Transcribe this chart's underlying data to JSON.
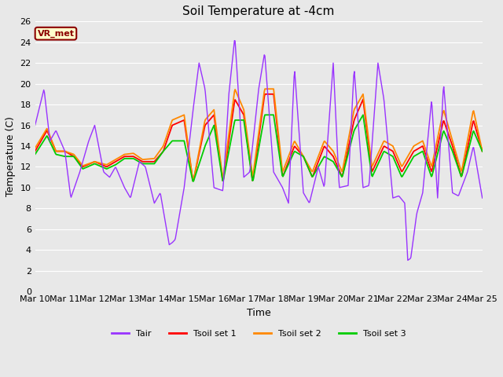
{
  "title": "Soil Temperature at -4cm",
  "xlabel": "Time",
  "ylabel": "Temperature (C)",
  "ylim": [
    0,
    26
  ],
  "yticks": [
    0,
    2,
    4,
    6,
    8,
    10,
    12,
    14,
    16,
    18,
    20,
    22,
    24,
    26
  ],
  "x_tick_labels": [
    "Mar 10",
    "Mar 11",
    "Mar 12",
    "Mar 13",
    "Mar 14",
    "Mar 15",
    "Mar 16",
    "Mar 17",
    "Mar 18",
    "Mar 19",
    "Mar 20",
    "Mar 21",
    "Mar 22",
    "Mar 23",
    "Mar 24",
    "Mar 25"
  ],
  "annotation_text": "VR_met",
  "annotation_color": "#8B0000",
  "annotation_bg": "#FFFFCC",
  "line_colors": {
    "Tair": "#9933FF",
    "Tsoil1": "#FF0000",
    "Tsoil2": "#FF8800",
    "Tsoil3": "#00CC00"
  },
  "legend_labels": [
    "Tair",
    "Tsoil set 1",
    "Tsoil set 2",
    "Tsoil set 3"
  ],
  "bg_color": "#E8E8E8",
  "plot_bg": "#E8E8E8",
  "grid_color": "#FFFFFF",
  "title_fontsize": 11,
  "axis_label_fontsize": 9,
  "tick_fontsize": 8
}
